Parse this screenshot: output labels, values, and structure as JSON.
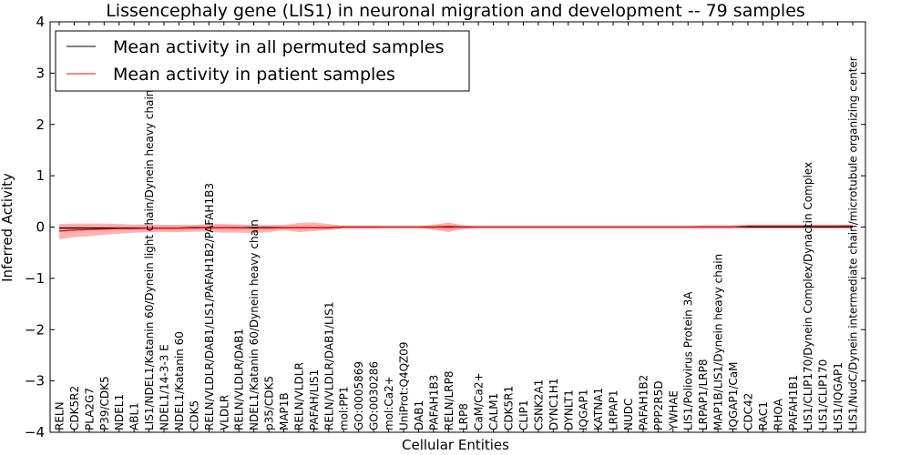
{
  "chart_data": {
    "type": "line",
    "title": "Lissencephaly gene (LIS1) in neuronal migration and development -- 79 samples",
    "xlabel": "Cellular Entities",
    "ylabel": "Inferred Activity",
    "ylim": [
      -4,
      4
    ],
    "yticks": [
      -4,
      -3,
      -2,
      -1,
      0,
      1,
      2,
      3,
      4
    ],
    "legend_position": "top-left",
    "grid": false,
    "categories": [
      "RELN",
      "CDK5R2",
      "PLA2G7",
      "P39/CDK5",
      "NDEL1",
      "ABL1",
      "LIS1/NDEL1/Katanin 60/Dynein light chain/Dynein heavy chain",
      "NDEL1/14-3-3 E",
      "NDEL1/Katanin 60",
      "CDK5",
      "RELN/VLDLR/DAB1/LIS1/PAFAH1B2/PAFAH1B3",
      "VLDLR",
      "RELN/VLDLR/DAB1",
      "NDEL1/Katanin 60/Dynein heavy chain",
      "p35/CDK5",
      "MAP1B",
      "RELN/VLDLR",
      "PAFAH/LIS1",
      "RELN/VLDLR/DAB1/LIS1",
      "mol:PP1",
      "GO:0005869",
      "GO:0030286",
      "mol:Ca2+",
      "UniProt:Q4QZ09",
      "DAB1",
      "PAFAH1B3",
      "RELN/LRP8",
      "LRP8",
      "CaM/Ca2+",
      "CALM1",
      "CDK5R1",
      "CLIP1",
      "CSNK2A1",
      "DYNC1H1",
      "DYNLT1",
      "IQGAP1",
      "KATNA1",
      "LRPAP1",
      "NUDC",
      "PAFAH1B2",
      "PPP2R5D",
      "YWHAE",
      "LIS1/Poliovirus Protein 3A",
      "LRPAP1/LRP8",
      "MAP1B/LIS1/Dynein heavy chain",
      "IQGAP1/CaM",
      "CDC42",
      "RAC1",
      "RHOA",
      "PAFAH1B1",
      "LIS1/CLIP170/Dynein Complex/Dynactin Complex",
      "LIS1/CLIP170",
      "LIS1/IQGAP1",
      "LIS1/NudC/Dynein intermediate chain/microtubule organizing center"
    ],
    "series": [
      {
        "name": "Mean activity in all permuted samples",
        "color": "#000000",
        "values": [
          -0.02,
          -0.02,
          -0.02,
          -0.02,
          -0.02,
          -0.02,
          -0.02,
          -0.02,
          -0.02,
          -0.01,
          -0.01,
          -0.01,
          -0.01,
          -0.01,
          -0.01,
          -0.01,
          -0.01,
          -0.01,
          -0.01,
          0,
          0,
          0,
          0,
          0,
          0,
          0,
          0,
          0,
          0,
          0,
          0,
          0,
          0,
          0,
          0,
          0,
          0,
          0,
          0,
          0,
          0,
          0,
          0,
          0,
          0,
          0,
          0,
          0,
          0,
          0,
          0,
          0,
          0,
          0
        ],
        "lower": [
          -0.06,
          -0.06,
          -0.06,
          -0.06,
          -0.06,
          -0.06,
          -0.06,
          -0.06,
          -0.06,
          -0.05,
          -0.05,
          -0.05,
          -0.05,
          -0.05,
          -0.05,
          -0.05,
          -0.05,
          -0.05,
          -0.05,
          -0.05,
          -0.05,
          -0.05,
          -0.05,
          -0.05,
          -0.05,
          -0.05,
          -0.05,
          -0.05,
          -0.05,
          -0.05,
          -0.05,
          -0.05,
          -0.05,
          -0.05,
          -0.05,
          -0.05,
          -0.05,
          -0.05,
          -0.05,
          -0.05,
          -0.05,
          -0.05,
          -0.05,
          -0.05,
          -0.05,
          -0.05,
          -0.05,
          -0.05,
          -0.05,
          -0.05,
          -0.05,
          -0.05,
          -0.05,
          -0.05
        ],
        "upper": [
          0.03,
          0.03,
          0.03,
          0.03,
          0.03,
          0.03,
          0.03,
          0.03,
          0.03,
          0.03,
          0.03,
          0.03,
          0.03,
          0.03,
          0.03,
          0.03,
          0.03,
          0.03,
          0.03,
          0.04,
          0.04,
          0.04,
          0.04,
          0.04,
          0.04,
          0.04,
          0.04,
          0.04,
          0.04,
          0.04,
          0.04,
          0.04,
          0.04,
          0.04,
          0.04,
          0.04,
          0.04,
          0.04,
          0.04,
          0.04,
          0.04,
          0.04,
          0.04,
          0.04,
          0.04,
          0.04,
          0.04,
          0.04,
          0.04,
          0.04,
          0.04,
          0.04,
          0.04,
          0.04
        ]
      },
      {
        "name": "Mean activity in patient samples",
        "color": "#ff0000",
        "values": [
          -0.08,
          -0.06,
          -0.05,
          -0.04,
          -0.03,
          -0.03,
          -0.02,
          -0.02,
          -0.02,
          -0.02,
          -0.01,
          -0.01,
          -0.01,
          -0.02,
          -0.02,
          -0.01,
          -0.01,
          -0.01,
          -0.01,
          0,
          0,
          0,
          0,
          0,
          0,
          0,
          0.01,
          0,
          0,
          0,
          0,
          0,
          0,
          0,
          0,
          0,
          0,
          0,
          0,
          0,
          0,
          0,
          0,
          0,
          0,
          0,
          0.02,
          0.02,
          0.02,
          0.02,
          0.02,
          0.02,
          0.02,
          0.02
        ],
        "lower": [
          -0.24,
          -0.2,
          -0.18,
          -0.15,
          -0.13,
          -0.11,
          -0.1,
          -0.1,
          -0.1,
          -0.09,
          -0.09,
          -0.11,
          -0.11,
          -0.12,
          -0.1,
          -0.06,
          -0.1,
          -0.08,
          -0.06,
          -0.02,
          -0.02,
          -0.02,
          -0.01,
          -0.01,
          -0.01,
          -0.05,
          -0.1,
          -0.03,
          -0.01,
          -0.01,
          -0.01,
          -0.01,
          -0.01,
          -0.01,
          -0.01,
          -0.01,
          -0.01,
          -0.01,
          -0.01,
          -0.01,
          -0.01,
          -0.01,
          -0.01,
          -0.01,
          0,
          0,
          0,
          0,
          0,
          0,
          0,
          0,
          0,
          0
        ],
        "upper": [
          0.06,
          0.07,
          0.07,
          0.07,
          0.06,
          0.05,
          0.05,
          0.04,
          0.04,
          0.04,
          0.06,
          0.06,
          0.05,
          0.04,
          0.04,
          0.04,
          0.08,
          0.09,
          0.06,
          0.02,
          0.02,
          0.02,
          0.01,
          0.01,
          0.01,
          0.04,
          0.09,
          0.03,
          0.01,
          0.01,
          0.01,
          0.01,
          0.01,
          0.01,
          0.01,
          0.01,
          0.01,
          0.01,
          0.01,
          0.01,
          0.01,
          0.01,
          0.01,
          0.03,
          0.03,
          0.03,
          0.04,
          0.04,
          0.04,
          0.04,
          0.04,
          0.04,
          0.04,
          0.05
        ]
      }
    ]
  }
}
